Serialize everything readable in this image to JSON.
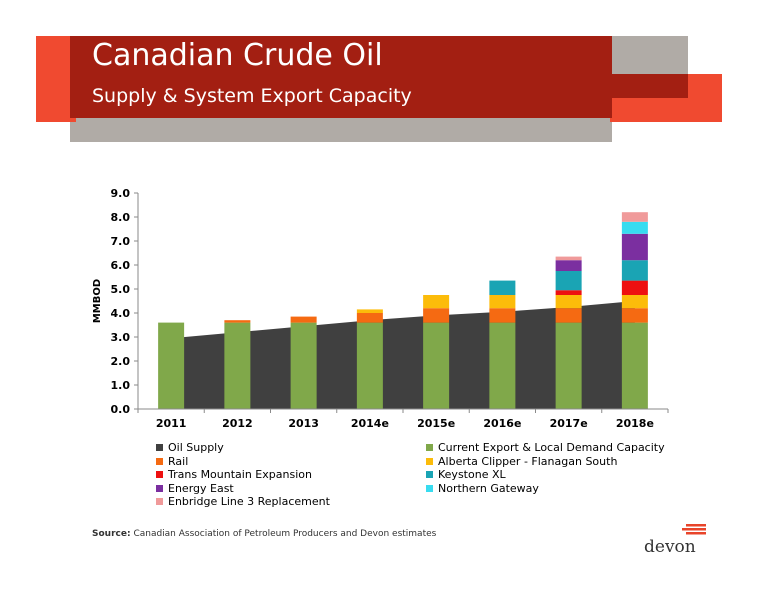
{
  "header": {
    "title": "Canadian Crude Oil",
    "subtitle": "Supply & System Export Capacity",
    "colors": {
      "dark_red": "#a31f12",
      "bright_red": "#f04a30",
      "gray": "#b0aba6"
    }
  },
  "chart_data": {
    "type": "bar",
    "stacked": true,
    "categories": [
      "2011",
      "2012",
      "2013",
      "2014e",
      "2015e",
      "2016e",
      "2017e",
      "2018e"
    ],
    "ylabel": "MMBOD",
    "ylim": [
      0,
      9
    ],
    "yticks": [
      "0.0",
      "1.0",
      "2.0",
      "3.0",
      "4.0",
      "5.0",
      "6.0",
      "7.0",
      "8.0",
      "9.0"
    ],
    "area_series": {
      "name": "Oil Supply",
      "color": "#404040",
      "values": [
        2.95,
        3.2,
        3.45,
        3.7,
        3.9,
        4.05,
        4.25,
        4.5
      ]
    },
    "series": [
      {
        "name": "Current Export & Local Demand Capacity",
        "color": "#80a84a",
        "values": [
          3.6,
          3.6,
          3.6,
          3.6,
          3.6,
          3.6,
          3.6,
          3.6
        ]
      },
      {
        "name": "Rail",
        "color": "#f56a12",
        "values": [
          0,
          0.1,
          0.25,
          0.4,
          0.6,
          0.6,
          0.6,
          0.6
        ]
      },
      {
        "name": "Alberta Clipper - Flanagan South",
        "color": "#fcbc0a",
        "values": [
          0,
          0,
          0,
          0.15,
          0.55,
          0.55,
          0.55,
          0.55
        ]
      },
      {
        "name": "Trans Mountain Expansion",
        "color": "#ee1010",
        "values": [
          0,
          0,
          0,
          0,
          0,
          0,
          0.2,
          0.6
        ]
      },
      {
        "name": "Keystone XL",
        "color": "#1aa4b4",
        "values": [
          0,
          0,
          0,
          0,
          0,
          0.6,
          0.8,
          0.85
        ]
      },
      {
        "name": "Energy East",
        "color": "#7b2fa0",
        "values": [
          0,
          0,
          0,
          0,
          0,
          0,
          0.45,
          1.1
        ]
      },
      {
        "name": "Northern Gateway",
        "color": "#38dcf0",
        "values": [
          0,
          0,
          0,
          0,
          0,
          0,
          0,
          0.5
        ]
      },
      {
        "name": "Enbridge Line 3 Replacement",
        "color": "#f09a9a",
        "values": [
          0,
          0,
          0,
          0,
          0,
          0,
          0.15,
          0.4
        ]
      }
    ],
    "grid": false,
    "legend_position": "bottom"
  },
  "legend": {
    "items": [
      {
        "label": "Oil Supply",
        "color": "#404040"
      },
      {
        "label": "Current Export & Local Demand Capacity",
        "color": "#80a84a"
      },
      {
        "label": "Rail",
        "color": "#f56a12"
      },
      {
        "label": "Alberta Clipper - Flanagan South",
        "color": "#fcbc0a"
      },
      {
        "label": "Trans Mountain Expansion",
        "color": "#ee1010"
      },
      {
        "label": "Keystone XL",
        "color": "#1aa4b4"
      },
      {
        "label": "Energy East",
        "color": "#7b2fa0"
      },
      {
        "label": "Northern Gateway",
        "color": "#38dcf0"
      },
      {
        "label": "Enbridge Line 3 Replacement",
        "color": "#f09a9a"
      }
    ]
  },
  "footer": {
    "source_label": "Source:",
    "source_text": "Canadian Association of Petroleum Producers and Devon estimates",
    "logo_text": "devon",
    "logo_icon": "devon-logo-icon"
  }
}
